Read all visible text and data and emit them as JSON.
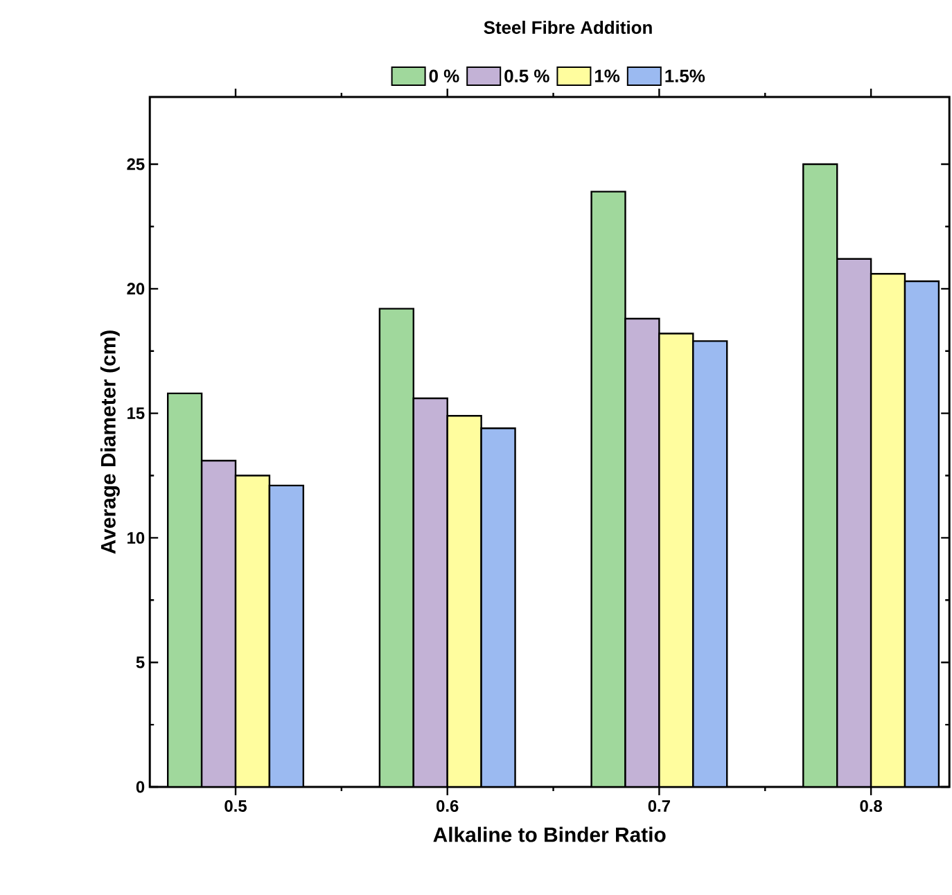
{
  "chart_data": {
    "type": "bar",
    "xlabel": "Alkaline to Binder Ratio",
    "ylabel": "Average Diameter (cm)",
    "legend_title": "Steel Fibre Addition",
    "categories": [
      "0.5",
      "0.6",
      "0.7",
      "0.8"
    ],
    "series": [
      {
        "name": "0 %",
        "color": "#a0d89c",
        "values": [
          15.8,
          19.2,
          23.9,
          25.0
        ]
      },
      {
        "name": "0.5 %",
        "color": "#c3b2d6",
        "values": [
          13.1,
          15.6,
          18.8,
          21.2
        ]
      },
      {
        "name": "1%",
        "color": "#fffd9e",
        "values": [
          12.5,
          14.9,
          18.2,
          20.6
        ]
      },
      {
        "name": "1.5%",
        "color": "#9bbaf1",
        "values": [
          12.1,
          14.4,
          17.9,
          20.3
        ]
      }
    ],
    "ylim": [
      0,
      27.7
    ],
    "yticks": [
      0,
      5,
      10,
      15,
      20,
      25
    ],
    "grid": false,
    "legend": "top"
  }
}
